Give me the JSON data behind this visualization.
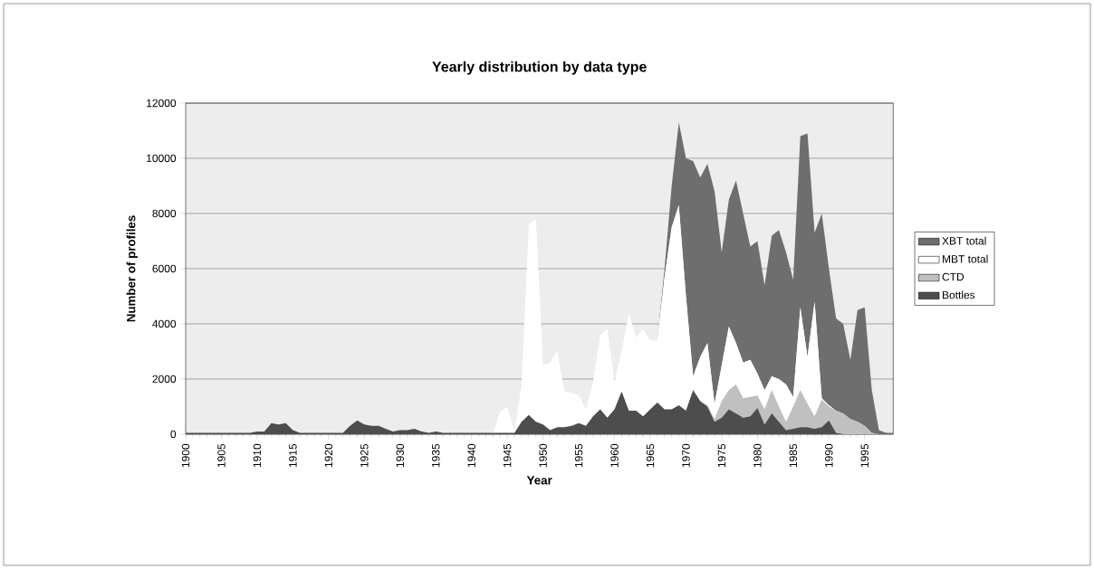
{
  "chart_data": {
    "type": "area",
    "title": "Yearly distribution by data type",
    "xlabel": "Year",
    "ylabel": "Number of profiles",
    "stacked": true,
    "grid": "y",
    "legend": "right",
    "x": [
      1900,
      1901,
      1902,
      1903,
      1904,
      1905,
      1906,
      1907,
      1908,
      1909,
      1910,
      1911,
      1912,
      1913,
      1914,
      1915,
      1916,
      1917,
      1918,
      1919,
      1920,
      1921,
      1922,
      1923,
      1924,
      1925,
      1926,
      1927,
      1928,
      1929,
      1930,
      1931,
      1932,
      1933,
      1934,
      1935,
      1936,
      1937,
      1938,
      1939,
      1940,
      1941,
      1942,
      1943,
      1944,
      1945,
      1946,
      1947,
      1948,
      1949,
      1950,
      1951,
      1952,
      1953,
      1954,
      1955,
      1956,
      1957,
      1958,
      1959,
      1960,
      1961,
      1962,
      1963,
      1964,
      1965,
      1966,
      1967,
      1968,
      1969,
      1970,
      1971,
      1972,
      1973,
      1974,
      1975,
      1976,
      1977,
      1978,
      1979,
      1980,
      1981,
      1982,
      1983,
      1984,
      1985,
      1986,
      1987,
      1988,
      1989,
      1990,
      1991,
      1992,
      1993,
      1994,
      1995,
      1996,
      1997,
      1998,
      1999
    ],
    "xlim": [
      1900,
      1999
    ],
    "xticks": [
      1900,
      1905,
      1910,
      1915,
      1920,
      1925,
      1930,
      1935,
      1940,
      1945,
      1950,
      1955,
      1960,
      1965,
      1970,
      1975,
      1980,
      1985,
      1990,
      1995
    ],
    "ylim": [
      0,
      12000
    ],
    "yticks": [
      0,
      2000,
      4000,
      6000,
      8000,
      10000,
      12000
    ],
    "series": [
      {
        "name": "Bottles",
        "color": "#4d4d4d",
        "values": [
          50,
          50,
          50,
          50,
          50,
          50,
          50,
          50,
          50,
          50,
          100,
          100,
          400,
          350,
          400,
          150,
          50,
          50,
          50,
          50,
          50,
          50,
          50,
          300,
          500,
          350,
          300,
          300,
          200,
          100,
          150,
          150,
          200,
          100,
          50,
          100,
          50,
          50,
          50,
          50,
          50,
          50,
          50,
          50,
          50,
          50,
          50,
          450,
          700,
          450,
          350,
          150,
          250,
          250,
          300,
          400,
          300,
          650,
          900,
          600,
          900,
          1550,
          850,
          850,
          650,
          900,
          1150,
          900,
          900,
          1050,
          850,
          1600,
          1200,
          1000,
          450,
          600,
          900,
          750,
          600,
          650,
          950,
          350,
          750,
          450,
          150,
          200,
          250,
          250,
          200,
          250,
          500,
          50,
          0,
          0,
          0,
          0,
          0,
          0,
          0,
          0
        ]
      },
      {
        "name": "CTD",
        "color": "#c0c0c0",
        "values": [
          0,
          0,
          0,
          0,
          0,
          0,
          0,
          0,
          0,
          0,
          0,
          0,
          0,
          0,
          0,
          0,
          0,
          0,
          0,
          0,
          0,
          0,
          0,
          0,
          0,
          0,
          0,
          0,
          0,
          0,
          0,
          0,
          0,
          0,
          0,
          0,
          0,
          0,
          0,
          0,
          0,
          0,
          0,
          0,
          0,
          0,
          0,
          0,
          0,
          0,
          0,
          0,
          0,
          0,
          0,
          0,
          0,
          0,
          0,
          0,
          0,
          0,
          0,
          0,
          0,
          0,
          0,
          0,
          0,
          0,
          0,
          0,
          0,
          50,
          100,
          600,
          700,
          1050,
          700,
          700,
          450,
          550,
          850,
          550,
          300,
          800,
          1350,
          850,
          450,
          1000,
          500,
          800,
          750,
          550,
          450,
          300,
          50,
          0,
          0,
          0
        ]
      },
      {
        "name": "MBT total",
        "color": "#ffffff",
        "values": [
          0,
          0,
          0,
          0,
          0,
          0,
          0,
          0,
          0,
          0,
          0,
          0,
          0,
          0,
          0,
          0,
          0,
          0,
          0,
          0,
          0,
          0,
          0,
          0,
          0,
          0,
          0,
          0,
          0,
          0,
          0,
          0,
          0,
          0,
          0,
          0,
          0,
          0,
          0,
          0,
          0,
          0,
          0,
          0,
          750,
          950,
          50,
          1350,
          6900,
          7350,
          2150,
          2450,
          2750,
          1300,
          1200,
          1000,
          600,
          1250,
          2700,
          3200,
          1000,
          1450,
          3550,
          2650,
          3150,
          2500,
          2250,
          4800,
          6600,
          7250,
          4150,
          500,
          1600,
          2250,
          550,
          1300,
          2300,
          1500,
          1300,
          1350,
          800,
          700,
          500,
          1000,
          1350,
          350,
          3000,
          1700,
          4150,
          50,
          50,
          0,
          0,
          0,
          0,
          0,
          0,
          0,
          0,
          0
        ]
      },
      {
        "name": "XBT total",
        "color": "#6e6e6e",
        "values": [
          0,
          0,
          0,
          0,
          0,
          0,
          0,
          0,
          0,
          0,
          0,
          0,
          0,
          0,
          0,
          0,
          0,
          0,
          0,
          0,
          0,
          0,
          0,
          0,
          0,
          0,
          0,
          0,
          0,
          0,
          0,
          0,
          0,
          0,
          0,
          0,
          0,
          0,
          0,
          0,
          0,
          0,
          0,
          0,
          0,
          0,
          0,
          0,
          0,
          0,
          0,
          0,
          0,
          0,
          0,
          0,
          0,
          0,
          0,
          0,
          0,
          0,
          0,
          0,
          0,
          0,
          0,
          300,
          1500,
          3000,
          5000,
          7800,
          6500,
          6500,
          7700,
          4100,
          4600,
          5900,
          5400,
          4100,
          4800,
          3800,
          5100,
          5400,
          4800,
          4250,
          6200,
          8100,
          2500,
          6700,
          4950,
          3350,
          3250,
          2150,
          4050,
          4300,
          1550,
          150,
          50,
          50
        ]
      }
    ]
  }
}
